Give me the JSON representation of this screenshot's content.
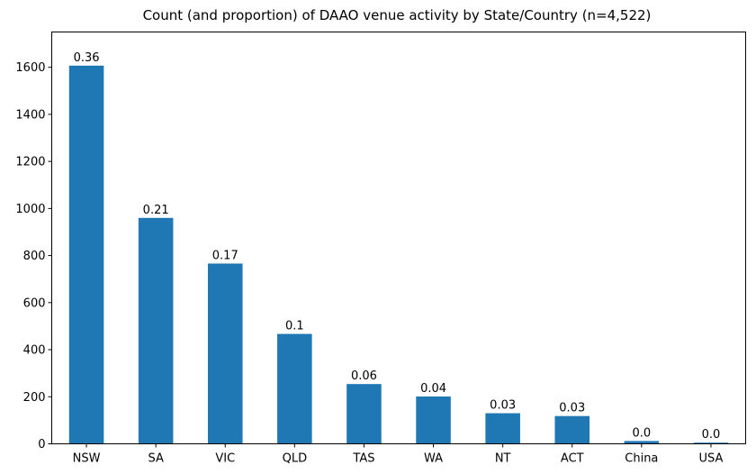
{
  "chart_data": {
    "type": "bar",
    "title": "Count (and proportion) of DAAO venue activity by State/Country (n=4,522)",
    "xlabel": "",
    "ylabel": "",
    "categories": [
      "NSW",
      "SA",
      "VIC",
      "QLD",
      "TAS",
      "WA",
      "NT",
      "ACT",
      "China",
      "USA"
    ],
    "values": [
      1607,
      960,
      766,
      467,
      254,
      201,
      130,
      118,
      12,
      5
    ],
    "bar_labels": [
      "0.36",
      "0.21",
      "0.17",
      "0.1",
      "0.06",
      "0.04",
      "0.03",
      "0.03",
      "0.0",
      "0.0"
    ],
    "ylim": [
      0,
      1750
    ],
    "yticks": [
      0,
      200,
      400,
      600,
      800,
      1000,
      1200,
      1400,
      1600
    ],
    "bar_color": "#1f77b4",
    "grid": false,
    "legend": "none"
  }
}
